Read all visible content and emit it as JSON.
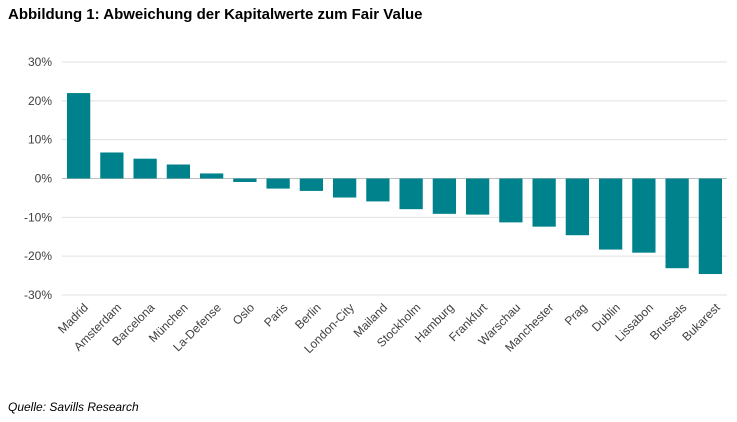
{
  "title": "Abbildung 1: Abweichung der Kapitalwerte zum Fair Value",
  "source": "Quelle: Savills Research",
  "chart_data": {
    "type": "bar",
    "title": "Abbildung 1: Abweichung der Kapitalwerte zum Fair Value",
    "xlabel": "",
    "ylabel": "",
    "categories": [
      "Madrid",
      "Amsterdam",
      "Barcelona",
      "München",
      "La-Defense",
      "Oslo",
      "Paris",
      "Berlin",
      "London-City",
      "Mailand",
      "Stockholm",
      "Hamburg",
      "Frankfurt",
      "Warschau",
      "Manchester",
      "Prag",
      "Dublin",
      "Lissabon",
      "Brussels",
      "Bukarest"
    ],
    "values": [
      22,
      6.7,
      5.1,
      3.6,
      1.3,
      -0.9,
      -2.6,
      -3.2,
      -4.9,
      -5.9,
      -7.9,
      -9.1,
      -9.3,
      -11.3,
      -12.4,
      -14.6,
      -18.3,
      -19.1,
      -23.1,
      -24.6
    ],
    "ylim": [
      -30,
      30
    ],
    "yticks": [
      30,
      20,
      10,
      0,
      -10,
      -20,
      -30
    ],
    "ytick_format": "%",
    "grid": true,
    "legend": "none",
    "colors": {
      "bar": "#00828c",
      "grid": "#e0e0e0",
      "zero_line": "#bfbfbf"
    }
  }
}
